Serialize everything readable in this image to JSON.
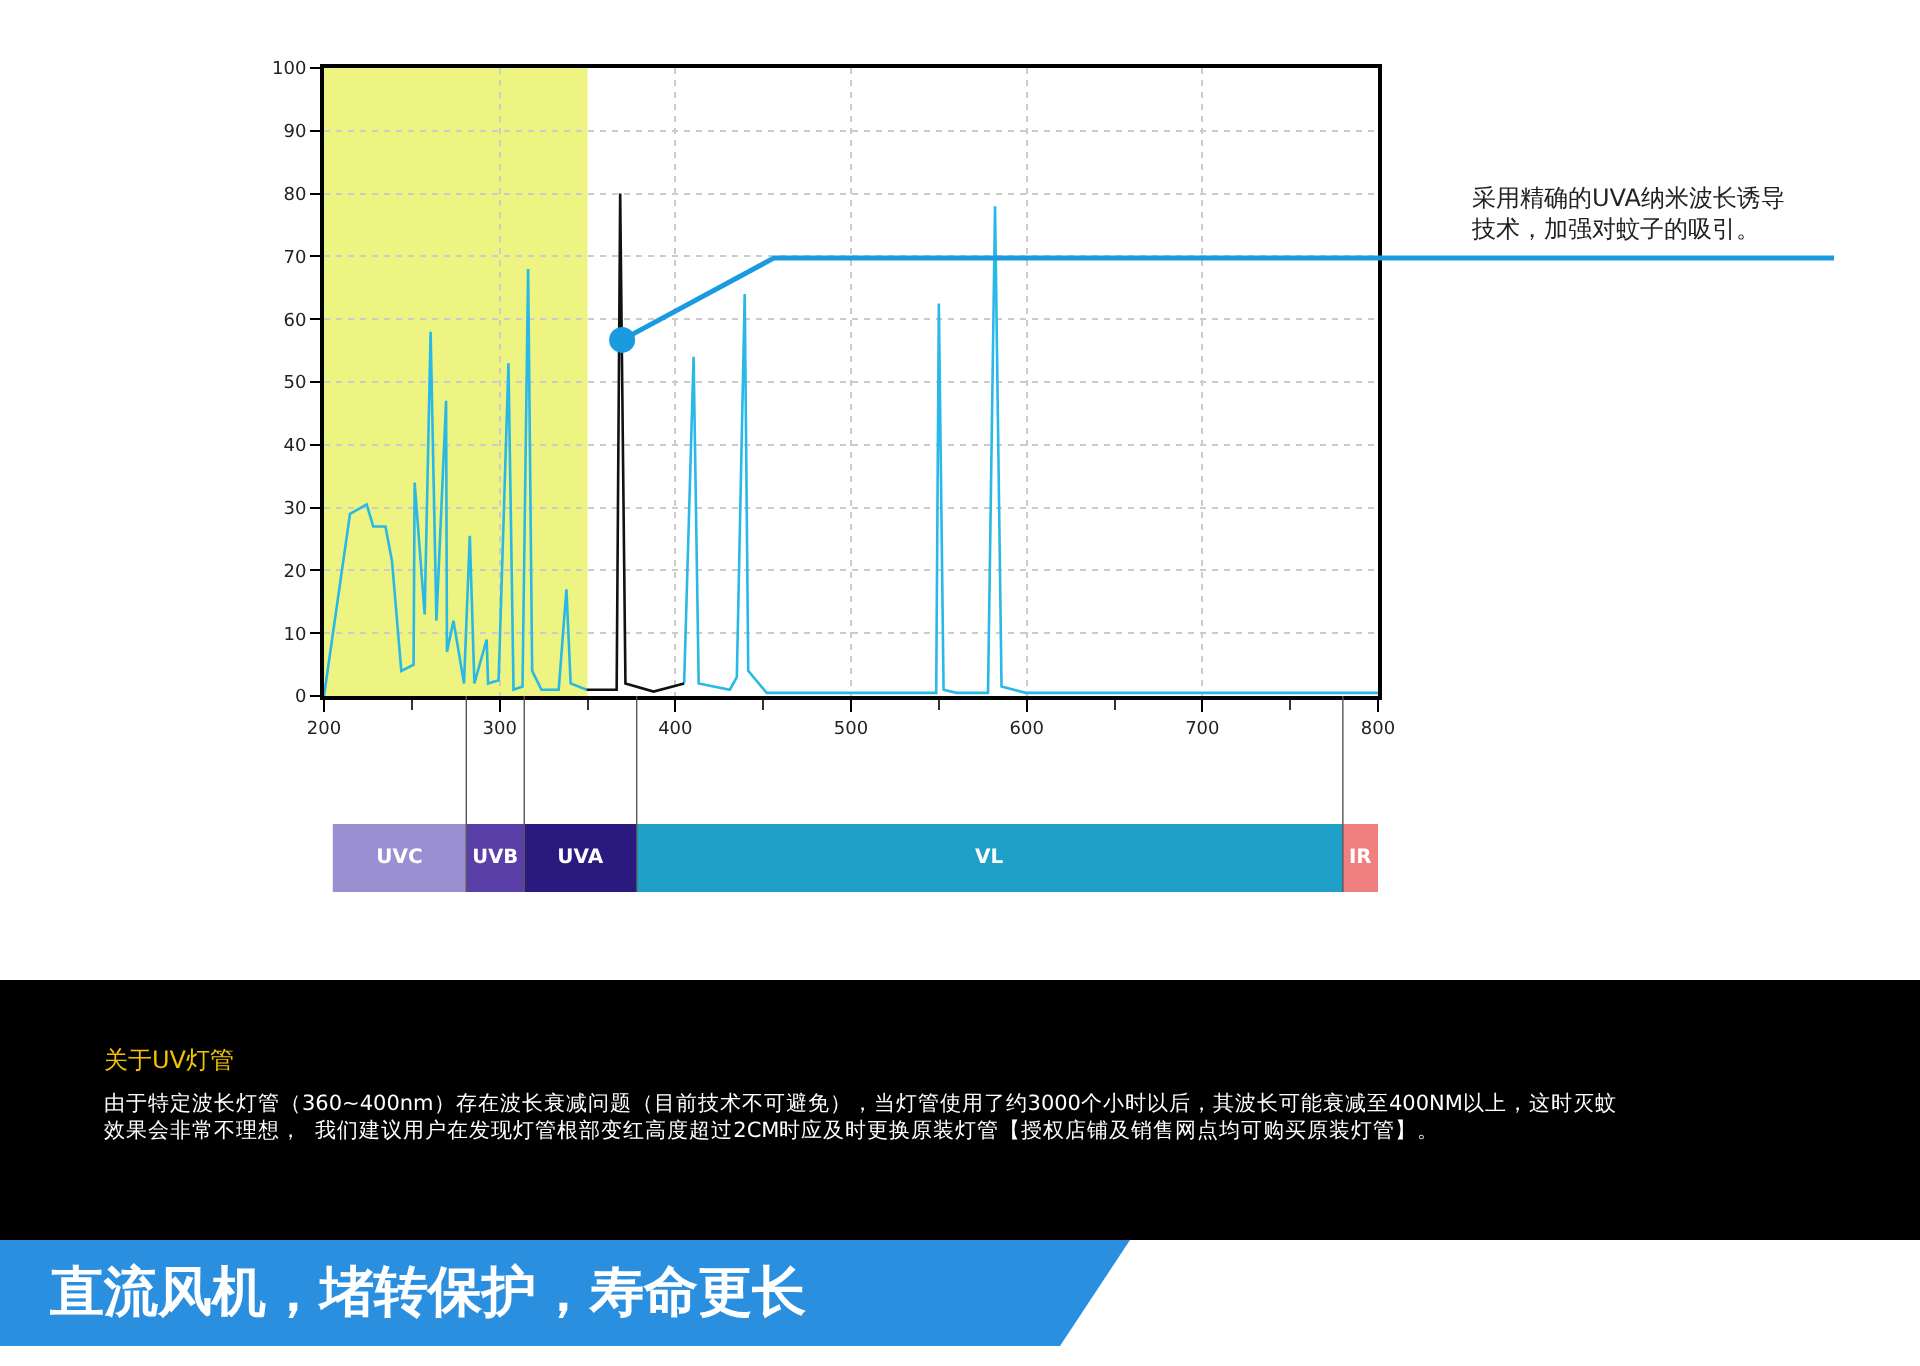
{
  "chart_data": [
    {
      "type": "line",
      "xlim": [
        200,
        800
      ],
      "xticks": [
        200,
        300,
        400,
        500,
        600,
        700,
        800
      ],
      "ylim": [
        0,
        100
      ],
      "yticks": [
        0,
        10,
        20,
        30,
        40,
        50,
        60,
        70,
        80,
        90,
        100
      ],
      "grid": true,
      "legend": false,
      "marker": "none",
      "line_style": "solid",
      "series": [
        {
          "color": "#2ab8e6",
          "x": [
            200,
            214.8,
            224.3,
            228,
            235,
            238.7,
            244,
            251,
            251.6,
            257.3,
            260.7,
            264,
            269.5,
            270,
            273.7,
            279.7,
            283,
            285.6,
            292.6,
            293.4,
            299.4,
            305,
            307.9,
            313,
            316.2,
            318.5,
            323.8,
            333.6,
            338,
            340.4,
            349.5,
            377,
            405,
            410.4,
            413.3,
            431,
            435,
            439.5,
            441.5,
            452,
            548.5,
            550,
            552.7,
            560,
            578,
            582,
            585.7,
            599.5,
            800
          ],
          "values": [
            0,
            29,
            30.5,
            27,
            27,
            21.5,
            4,
            5,
            34,
            13,
            58,
            12,
            47,
            7,
            12,
            2,
            25.5,
            2,
            9,
            2,
            2.5,
            53,
            1,
            1.5,
            68,
            4,
            1,
            1,
            17,
            2,
            1,
            null,
            2,
            54,
            2,
            1,
            3,
            64,
            4,
            0.5,
            0.5,
            62.5,
            1,
            0.5,
            0.5,
            78,
            1.5,
            0.5,
            0.5
          ]
        },
        {
          "color": "#111111",
          "x": [
            349.5,
            366.6,
            368.6,
            371.6,
            387.6,
            405
          ],
          "values": [
            1,
            1,
            80,
            2,
            0.7,
            2
          ]
        }
      ],
      "bands": [
        {
          "axis": "x",
          "from": 200,
          "to": 350,
          "color": "#dfeb1c"
        }
      ],
      "annotations": [
        {
          "text": "采用精确的UVA纳米波长诱导技术，加强对蚊子的吸引。",
          "x": 369.7,
          "y": 56.7
        },
        "关于UV灯管",
        "由于特定波长灯管（360~400nm）存在波长衰减问题（目前技术不可避免），当灯管使用了约3000个小时以后，其波长可能衰减至400NM以上，这时灭蚊效果会非常不理想，  我们建议用户在发现灯管根部变红高度超过2CM时应及时更换原装灯管【授权店铺及销售网点均可购买原装灯管】。",
        "直流风机，堵转保护，寿命更长"
      ]
    },
    {
      "type": "bar",
      "orientation": "horizontal",
      "categories": [
        null
      ],
      "xlim": [
        200,
        800
      ],
      "tick_labels": false,
      "legend": false,
      "series": [
        {
          "name": "UVC",
          "color": "#9a8fd0",
          "base": [
            205
          ],
          "values": [
            76
          ]
        },
        {
          "name": "UVB",
          "color": "#5b3fa8",
          "base": [
            281
          ],
          "values": [
            33
          ]
        },
        {
          "name": "UVA",
          "color": "#2a1a80",
          "base": [
            314
          ],
          "values": [
            64
          ]
        },
        {
          "name": "VL",
          "color": "#1ea0c8",
          "base": [
            378
          ],
          "values": [
            402
          ]
        },
        {
          "name": "IR",
          "color": "#f08080",
          "base": [
            780
          ],
          "values": [
            20
          ]
        }
      ]
    }
  ]
}
